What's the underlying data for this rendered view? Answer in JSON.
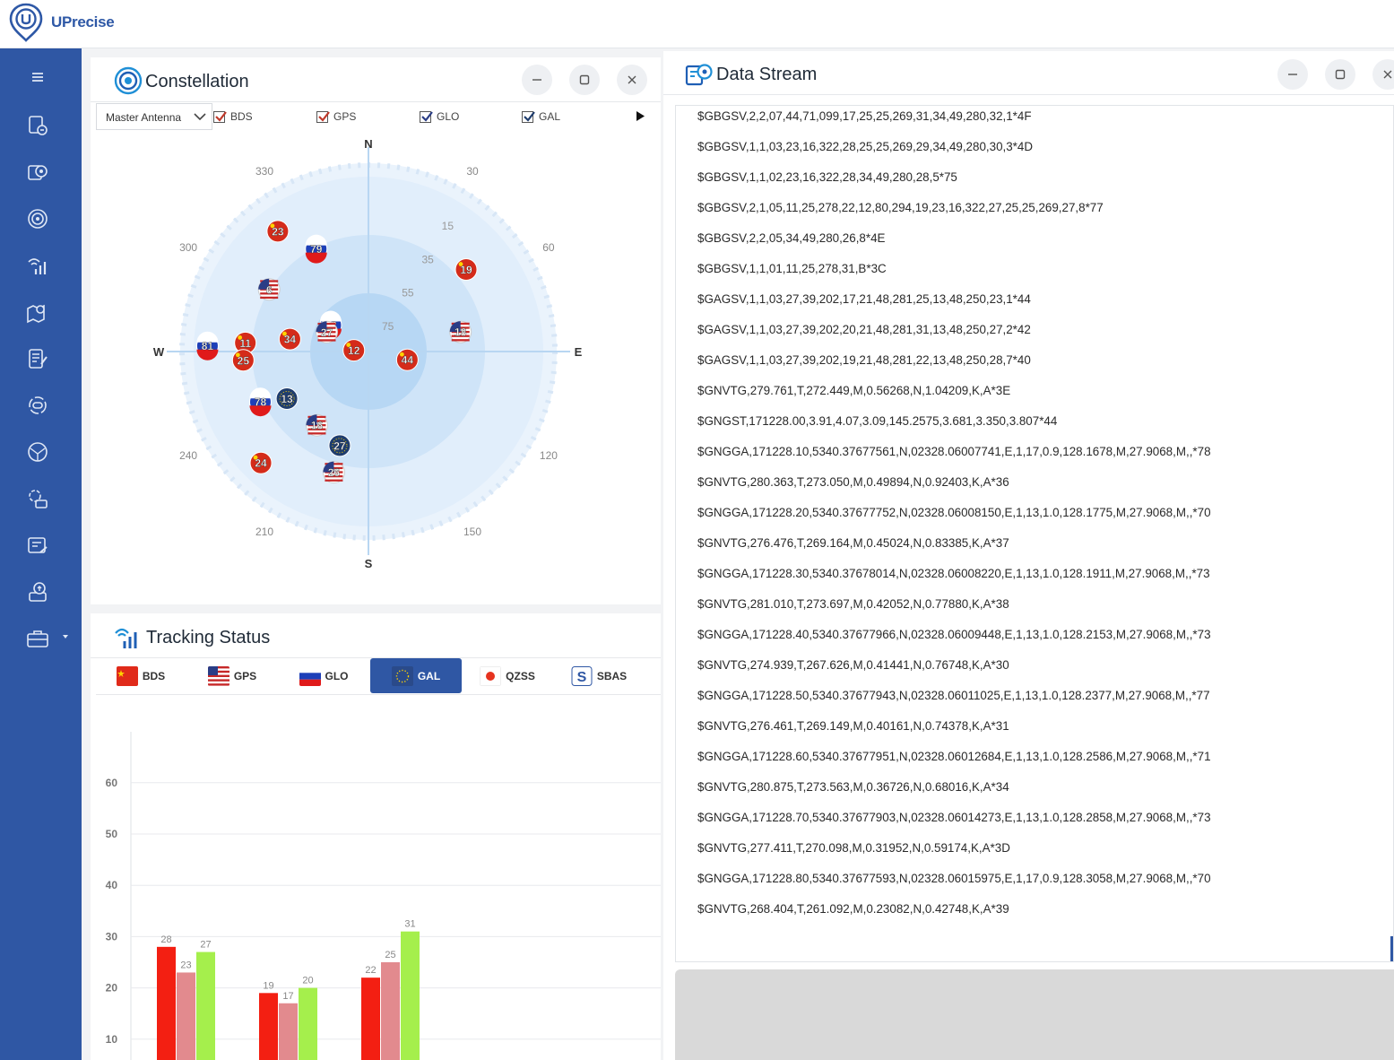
{
  "app": {
    "name": "UPrecise"
  },
  "colors": {
    "brand": "#2f57a4",
    "bds_bar": "#f31f12",
    "bds_bar2": "#e28a8e",
    "bds_bar3": "#a5ef4c"
  },
  "sidebar": {
    "items": [
      {
        "icon": "menu-icon"
      },
      {
        "icon": "device-connect-icon"
      },
      {
        "icon": "data-stream-icon"
      },
      {
        "icon": "constellation-icon"
      },
      {
        "icon": "tracking-signal-icon"
      },
      {
        "icon": "map-location-icon"
      },
      {
        "icon": "notes-edit-icon"
      },
      {
        "icon": "target-settings-icon"
      },
      {
        "icon": "globe-network-icon"
      },
      {
        "icon": "device-config-icon"
      },
      {
        "icon": "data-log-icon"
      },
      {
        "icon": "upload-firmware-icon"
      },
      {
        "icon": "toolbox-icon"
      }
    ]
  },
  "constellation": {
    "title": "Constellation",
    "antenna_select": "Master Antenna",
    "filters": [
      {
        "label": "BDS",
        "checked": true,
        "color": "#c0392b"
      },
      {
        "label": "GPS",
        "checked": true,
        "color": "#2a3d86"
      },
      {
        "label": "GLO",
        "checked": true,
        "color": "#2a3d86"
      },
      {
        "label": "GAL",
        "checked": true,
        "color": "#1f3d6e"
      }
    ],
    "compass": {
      "north": "N",
      "south": "S",
      "east": "E",
      "west": "W"
    },
    "azimuth_labels": [
      "330",
      "30",
      "300",
      "60",
      "120",
      "240",
      "210",
      "150"
    ],
    "elevation_labels": [
      "15",
      "35",
      "55",
      "75"
    ],
    "satellites": [
      {
        "id": "23",
        "sys": "BDS",
        "az": 323,
        "el": 18
      },
      {
        "id": "79",
        "sys": "GLO",
        "az": 333,
        "el": 35
      },
      {
        "id": "19",
        "sys": "BDS",
        "az": 50,
        "el": 29
      },
      {
        "id": "6",
        "sys": "GPS",
        "az": 302,
        "el": 34
      },
      {
        "id": "88",
        "sys": "GLO",
        "az": 305,
        "el": 68
      },
      {
        "id": "27",
        "sys": "GPS",
        "az": 295,
        "el": 68
      },
      {
        "id": "18",
        "sys": "GPS",
        "az": 78,
        "el": 45
      },
      {
        "id": "81",
        "sys": "GLO",
        "az": 272,
        "el": 13
      },
      {
        "id": "11",
        "sys": "BDS",
        "az": 274,
        "el": 31
      },
      {
        "id": "34",
        "sys": "BDS",
        "az": 279,
        "el": 52
      },
      {
        "id": "12",
        "sys": "BDS",
        "az": 275,
        "el": 83
      },
      {
        "id": "44",
        "sys": "BDS",
        "az": 102,
        "el": 71
      },
      {
        "id": "25",
        "sys": "BDS",
        "az": 266,
        "el": 30
      },
      {
        "id": "78",
        "sys": "GLO",
        "az": 245,
        "el": 33
      },
      {
        "id": "13",
        "sys": "GAL",
        "az": 240,
        "el": 45
      },
      {
        "id": "16",
        "sys": "GPS",
        "az": 215,
        "el": 47
      },
      {
        "id": "27",
        "sys": "GAL",
        "az": 197,
        "el": 43
      },
      {
        "id": "24",
        "sys": "BDS",
        "az": 224,
        "el": 16
      },
      {
        "id": "26",
        "sys": "GPS",
        "az": 196,
        "el": 30
      }
    ]
  },
  "tracking": {
    "title": "Tracking Status",
    "tabs": [
      {
        "label": "BDS",
        "active": false
      },
      {
        "label": "GPS",
        "active": false
      },
      {
        "label": "GLO",
        "active": false
      },
      {
        "label": "GAL",
        "active": true
      },
      {
        "label": "QZSS",
        "active": false
      },
      {
        "label": "SBAS",
        "active": false
      }
    ]
  },
  "chart_data": {
    "type": "bar",
    "title": "",
    "xlabel": "",
    "ylabel": "",
    "ylim": [
      0,
      70
    ],
    "yticks": [
      "10",
      "20",
      "30",
      "40",
      "50",
      "60"
    ],
    "grid": true,
    "groups": [
      {
        "values": [
          28,
          23,
          27
        ]
      },
      {
        "values": [
          19,
          17,
          20
        ]
      },
      {
        "values": [
          22,
          25,
          31
        ]
      }
    ],
    "series_colors": [
      "#f31f12",
      "#e28a8e",
      "#a5ef4c"
    ]
  },
  "datastream": {
    "title": "Data Stream",
    "lines": [
      "$GBGSV,2,2,07,44,71,099,17,25,25,269,31,34,49,280,32,1*4F",
      "$GBGSV,1,1,03,23,16,322,28,25,25,269,29,34,49,280,30,3*4D",
      "$GBGSV,1,1,02,23,16,322,28,34,49,280,28,5*75",
      "$GBGSV,2,1,05,11,25,278,22,12,80,294,19,23,16,322,27,25,25,269,27,8*77",
      "$GBGSV,2,2,05,34,49,280,26,8*4E",
      "$GBGSV,1,1,01,11,25,278,31,B*3C",
      "$GAGSV,1,1,03,27,39,202,17,21,48,281,25,13,48,250,23,1*44",
      "$GAGSV,1,1,03,27,39,202,20,21,48,281,31,13,48,250,27,2*42",
      "$GAGSV,1,1,03,27,39,202,19,21,48,281,22,13,48,250,28,7*40",
      "$GNVTG,279.761,T,272.449,M,0.56268,N,1.04209,K,A*3E",
      "$GNGST,171228.00,3.91,4.07,3.09,145.2575,3.681,3.350,3.807*44",
      "$GNGGA,171228.10,5340.37677561,N,02328.06007741,E,1,17,0.9,128.1678,M,27.9068,M,,*78",
      "$GNVTG,280.363,T,273.050,M,0.49894,N,0.92403,K,A*36",
      "$GNGGA,171228.20,5340.37677752,N,02328.06008150,E,1,13,1.0,128.1775,M,27.9068,M,,*70",
      "$GNVTG,276.476,T,269.164,M,0.45024,N,0.83385,K,A*37",
      "$GNGGA,171228.30,5340.37678014,N,02328.06008220,E,1,13,1.0,128.1911,M,27.9068,M,,*73",
      "$GNVTG,281.010,T,273.697,M,0.42052,N,0.77880,K,A*38",
      "$GNGGA,171228.40,5340.37677966,N,02328.06009448,E,1,13,1.0,128.2153,M,27.9068,M,,*73",
      "$GNVTG,274.939,T,267.626,M,0.41441,N,0.76748,K,A*30",
      "$GNGGA,171228.50,5340.37677943,N,02328.06011025,E,1,13,1.0,128.2377,M,27.9068,M,,*77",
      "$GNVTG,276.461,T,269.149,M,0.40161,N,0.74378,K,A*31",
      "$GNGGA,171228.60,5340.37677951,N,02328.06012684,E,1,13,1.0,128.2586,M,27.9068,M,,*71",
      "$GNVTG,280.875,T,273.563,M,0.36726,N,0.68016,K,A*34",
      "$GNGGA,171228.70,5340.37677903,N,02328.06014273,E,1,13,1.0,128.2858,M,27.9068,M,,*73",
      "$GNVTG,277.411,T,270.098,M,0.31952,N,0.59174,K,A*3D",
      "$GNGGA,171228.80,5340.37677593,N,02328.06015975,E,1,17,0.9,128.3058,M,27.9068,M,,*70",
      "$GNVTG,268.404,T,261.092,M,0.23082,N,0.42748,K,A*39"
    ]
  }
}
